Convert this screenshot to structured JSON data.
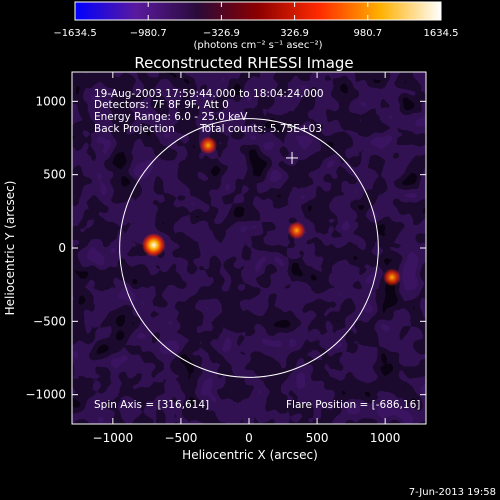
{
  "colors": {
    "background": "#000000",
    "foreground": "#ffffff",
    "colorbar_stops": [
      "#0000ff",
      "#5a1a9e",
      "#2a0a3a",
      "#8b0000",
      "#ff2a00",
      "#ffb000",
      "#ffffff"
    ]
  },
  "colorbar": {
    "tick_labels": [
      "−1634.5",
      "−980.7",
      "−326.9",
      "326.9",
      "980.7",
      "1634.5"
    ],
    "unit_text": "(photons cm⁻² s⁻¹ asec⁻²)"
  },
  "chart_data": {
    "type": "heatmap",
    "title": "Reconstructed RHESSI Image",
    "xlabel": "Heliocentric X (arcsec)",
    "ylabel": "Heliocentric Y (arcsec)",
    "xlim": [
      -1300,
      1300
    ],
    "ylim": [
      -1200,
      1200
    ],
    "x_ticks": [
      -1000,
      -500,
      0,
      500,
      1000
    ],
    "y_ticks": [
      -1000,
      -500,
      0,
      500,
      1000
    ],
    "x_tick_labels": [
      "−1000",
      "−500",
      "0",
      "500",
      "1000"
    ],
    "y_tick_labels": [
      "−1000",
      "−500",
      "0",
      "500",
      "1000"
    ],
    "value_range": [
      -1634.5,
      1634.5
    ],
    "solar_limb": {
      "center": [
        0,
        0
      ],
      "radius": 950
    },
    "marker": {
      "symbol": "+",
      "x": 316,
      "y": 614
    },
    "bright_spots": [
      {
        "x": -700,
        "y": 20,
        "level": "high"
      },
      {
        "x": -300,
        "y": 700,
        "level": "medium"
      },
      {
        "x": 350,
        "y": 120,
        "level": "medium"
      },
      {
        "x": 1050,
        "y": -200,
        "level": "medium"
      }
    ],
    "annotations": {
      "time_range": "19-Aug-2003 17:59:44.000 to 18:04:24.000",
      "detectors": "Detectors: 7F 8F 9F, Att 0",
      "energy": "Energy Range: 6.0 - 25.0 keV",
      "method": "Back Projection",
      "counts": "Total counts: 5.75E+03",
      "spin_axis": "Spin Axis = [316,614]",
      "flare_position": "Flare Position = [-686,16]"
    }
  },
  "footer": {
    "date": "7-Jun-2013 19:58"
  }
}
